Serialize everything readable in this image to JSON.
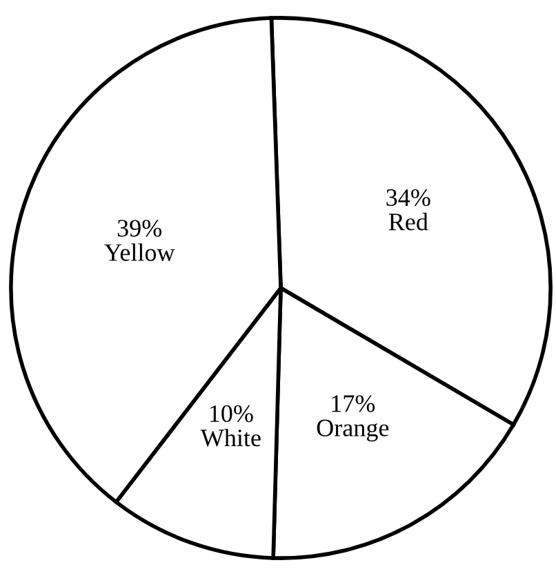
{
  "chart_data": {
    "type": "pie",
    "categories": [
      "Red",
      "Orange",
      "White",
      "Yellow"
    ],
    "values": [
      34,
      17,
      10,
      39
    ],
    "value_labels": [
      "34%",
      "17%",
      "10%",
      "39%"
    ],
    "colors": [
      "#ffffff",
      "#ffffff",
      "#ffffff",
      "#ffffff"
    ],
    "legend": false
  }
}
